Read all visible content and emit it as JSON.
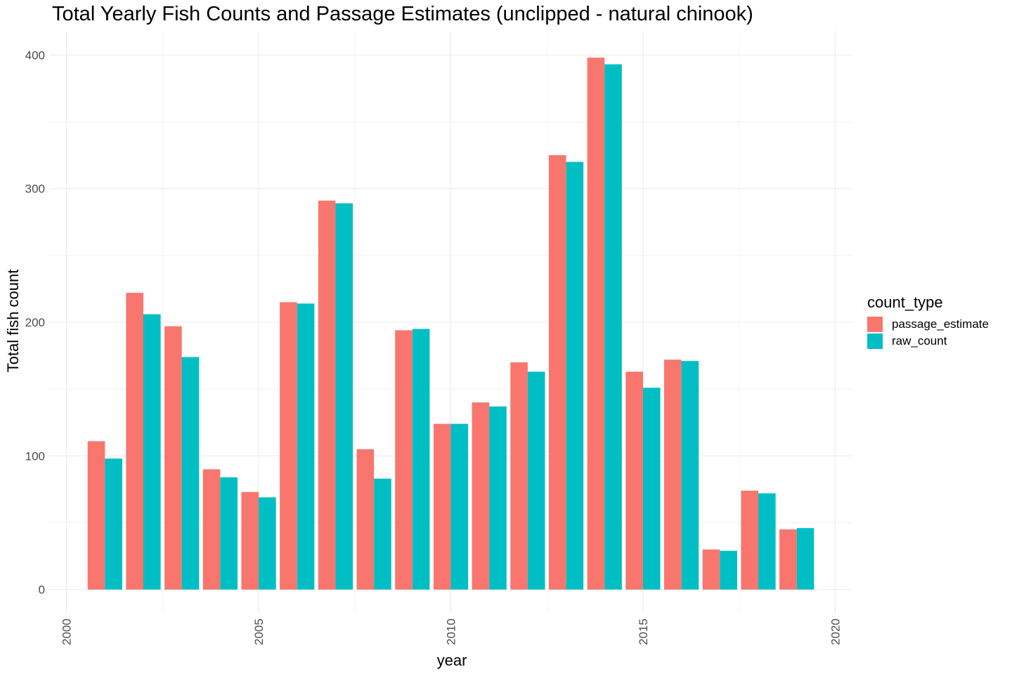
{
  "chart_data": {
    "type": "bar",
    "title": "Total Yearly Fish Counts and Passage Estimates (unclipped - natural chinook)",
    "xlabel": "year",
    "ylabel": "Total fish count",
    "x": [
      2001,
      2002,
      2003,
      2004,
      2005,
      2006,
      2007,
      2008,
      2009,
      2010,
      2011,
      2012,
      2013,
      2014,
      2015,
      2016,
      2017,
      2018,
      2019
    ],
    "xlim": [
      1999.55,
      2020.45
    ],
    "ylim": [
      -18,
      418
    ],
    "xticks": [
      2000,
      2005,
      2010,
      2015,
      2020
    ],
    "yticks": [
      0,
      100,
      200,
      300,
      400
    ],
    "grid": true,
    "legend": {
      "title": "count_type",
      "position": "right"
    },
    "series": [
      {
        "name": "passage_estimate",
        "color": "#F8766D",
        "values": [
          111,
          222,
          197,
          90,
          73,
          215,
          291,
          105,
          194,
          124,
          140,
          170,
          325,
          398,
          163,
          172,
          30,
          74,
          45
        ]
      },
      {
        "name": "raw_count",
        "color": "#00BFC4",
        "values": [
          98,
          206,
          174,
          84,
          69,
          214,
          289,
          83,
          195,
          124,
          137,
          163,
          320,
          393,
          151,
          171,
          29,
          72,
          46
        ]
      }
    ]
  }
}
